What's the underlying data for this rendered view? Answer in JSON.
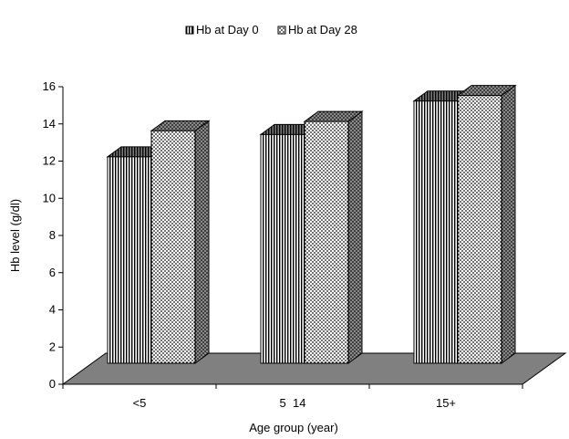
{
  "chart_data": {
    "type": "bar",
    "title": "",
    "xlabel": "Age group (year)",
    "ylabel": "Hb level (g/dl)",
    "ylim": [
      0,
      16
    ],
    "yticks": [
      0,
      2,
      4,
      6,
      8,
      10,
      12,
      14,
      16
    ],
    "categories": [
      "<5",
      "5  14",
      "15+"
    ],
    "series": [
      {
        "name": "Hb at Day 0",
        "values": [
          11.1,
          12.3,
          14.1
        ],
        "pattern": "vertical-lines"
      },
      {
        "name": "Hb at Day 28",
        "values": [
          12.5,
          13.0,
          14.4
        ],
        "pattern": "dots"
      }
    ],
    "legend_position": "top",
    "style": "3d-clustered-bar",
    "colors": {
      "bar_fill": "#ffffff",
      "bar_stroke": "#000000",
      "floor": "#808080"
    }
  }
}
